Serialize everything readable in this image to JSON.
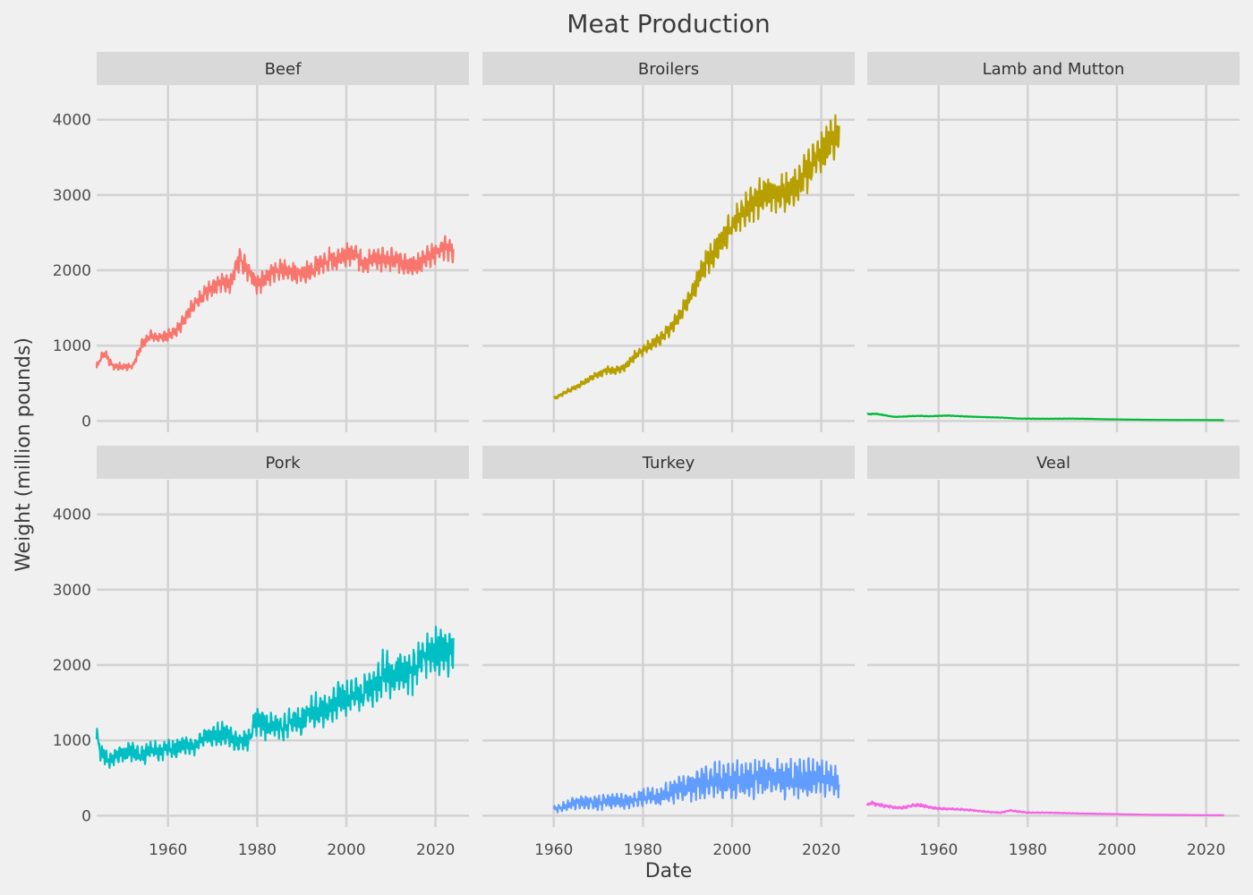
{
  "chart_data": {
    "type": "line",
    "title": "Meat Production",
    "xlabel": "Date",
    "ylabel": "Weight (million pounds)",
    "xlim": [
      1944,
      2027.5
    ],
    "ylim": [
      -150,
      4460
    ],
    "x_ticks": [
      1960,
      1980,
      2000,
      2020
    ],
    "y_ticks": [
      0,
      1000,
      2000,
      3000,
      4000
    ],
    "grid": true,
    "legend": "none",
    "panels": [
      {
        "name": "Beef",
        "color": "#F8766D",
        "start": 1944,
        "end": 2024,
        "seasonal_amp": 0.06,
        "points": [
          [
            1944,
            720
          ],
          [
            1945,
            840
          ],
          [
            1946,
            900
          ],
          [
            1947,
            770
          ],
          [
            1948,
            720
          ],
          [
            1950,
            730
          ],
          [
            1952,
            720
          ],
          [
            1954,
            1000
          ],
          [
            1956,
            1130
          ],
          [
            1958,
            1100
          ],
          [
            1960,
            1130
          ],
          [
            1962,
            1200
          ],
          [
            1964,
            1370
          ],
          [
            1966,
            1560
          ],
          [
            1968,
            1680
          ],
          [
            1970,
            1760
          ],
          [
            1972,
            1830
          ],
          [
            1974,
            1820
          ],
          [
            1976,
            2160
          ],
          [
            1978,
            2000
          ],
          [
            1980,
            1800
          ],
          [
            1982,
            1900
          ],
          [
            1984,
            1980
          ],
          [
            1986,
            2000
          ],
          [
            1988,
            1970
          ],
          [
            1990,
            1950
          ],
          [
            1992,
            1980
          ],
          [
            1994,
            2080
          ],
          [
            1996,
            2140
          ],
          [
            1998,
            2140
          ],
          [
            2000,
            2200
          ],
          [
            2002,
            2220
          ],
          [
            2004,
            2060
          ],
          [
            2006,
            2160
          ],
          [
            2008,
            2150
          ],
          [
            2010,
            2140
          ],
          [
            2012,
            2120
          ],
          [
            2014,
            2060
          ],
          [
            2016,
            2080
          ],
          [
            2018,
            2190
          ],
          [
            2020,
            2220
          ],
          [
            2022,
            2300
          ],
          [
            2024,
            2260
          ]
        ]
      },
      {
        "name": "Broilers",
        "color": "#B79F00",
        "start": 1960,
        "end": 2024,
        "seasonal_amp": 0.07,
        "points": [
          [
            1960,
            300
          ],
          [
            1962,
            360
          ],
          [
            1964,
            420
          ],
          [
            1966,
            480
          ],
          [
            1968,
            550
          ],
          [
            1970,
            620
          ],
          [
            1972,
            680
          ],
          [
            1974,
            660
          ],
          [
            1976,
            720
          ],
          [
            1978,
            850
          ],
          [
            1980,
            950
          ],
          [
            1982,
            1020
          ],
          [
            1984,
            1100
          ],
          [
            1986,
            1220
          ],
          [
            1988,
            1380
          ],
          [
            1990,
            1580
          ],
          [
            1992,
            1830
          ],
          [
            1994,
            2080
          ],
          [
            1996,
            2260
          ],
          [
            1998,
            2420
          ],
          [
            2000,
            2580
          ],
          [
            2002,
            2760
          ],
          [
            2004,
            2880
          ],
          [
            2006,
            2950
          ],
          [
            2008,
            3020
          ],
          [
            2010,
            2980
          ],
          [
            2012,
            3020
          ],
          [
            2014,
            3120
          ],
          [
            2016,
            3260
          ],
          [
            2018,
            3420
          ],
          [
            2020,
            3560
          ],
          [
            2022,
            3680
          ],
          [
            2024,
            3840
          ]
        ]
      },
      {
        "name": "Lamb and Mutton",
        "color": "#00BA38",
        "start": 1944,
        "end": 2024,
        "seasonal_amp": 0.06,
        "points": [
          [
            1944,
            90
          ],
          [
            1946,
            95
          ],
          [
            1948,
            75
          ],
          [
            1950,
            55
          ],
          [
            1952,
            58
          ],
          [
            1954,
            65
          ],
          [
            1956,
            68
          ],
          [
            1958,
            62
          ],
          [
            1960,
            68
          ],
          [
            1962,
            72
          ],
          [
            1964,
            66
          ],
          [
            1966,
            60
          ],
          [
            1970,
            52
          ],
          [
            1974,
            45
          ],
          [
            1978,
            32
          ],
          [
            1982,
            30
          ],
          [
            1986,
            30
          ],
          [
            1990,
            32
          ],
          [
            1994,
            28
          ],
          [
            1998,
            22
          ],
          [
            2002,
            19
          ],
          [
            2006,
            16
          ],
          [
            2010,
            14
          ],
          [
            2014,
            13
          ],
          [
            2018,
            13
          ],
          [
            2024,
            11
          ]
        ]
      },
      {
        "name": "Pork",
        "color": "#00BFC4",
        "start": 1944,
        "end": 2024,
        "seasonal_amp": 0.13,
        "points": [
          [
            1944,
            1050
          ],
          [
            1945,
            830
          ],
          [
            1946,
            780
          ],
          [
            1947,
            720
          ],
          [
            1948,
            780
          ],
          [
            1950,
            820
          ],
          [
            1952,
            860
          ],
          [
            1954,
            780
          ],
          [
            1956,
            880
          ],
          [
            1958,
            850
          ],
          [
            1960,
            880
          ],
          [
            1962,
            900
          ],
          [
            1964,
            950
          ],
          [
            1966,
            920
          ],
          [
            1968,
            1020
          ],
          [
            1970,
            1080
          ],
          [
            1972,
            1080
          ],
          [
            1974,
            1060
          ],
          [
            1976,
            970
          ],
          [
            1978,
            1010
          ],
          [
            1980,
            1300
          ],
          [
            1982,
            1180
          ],
          [
            1984,
            1200
          ],
          [
            1986,
            1160
          ],
          [
            1988,
            1260
          ],
          [
            1990,
            1240
          ],
          [
            1992,
            1380
          ],
          [
            1994,
            1420
          ],
          [
            1996,
            1380
          ],
          [
            1998,
            1560
          ],
          [
            2000,
            1550
          ],
          [
            2002,
            1600
          ],
          [
            2004,
            1640
          ],
          [
            2006,
            1680
          ],
          [
            2008,
            1900
          ],
          [
            2010,
            1850
          ],
          [
            2012,
            1920
          ],
          [
            2014,
            1860
          ],
          [
            2016,
            2000
          ],
          [
            2018,
            2140
          ],
          [
            2020,
            2220
          ],
          [
            2022,
            2200
          ],
          [
            2024,
            2240
          ]
        ]
      },
      {
        "name": "Turkey",
        "color": "#619CFF",
        "start": 1960,
        "end": 2024,
        "seasonal_amp": 0.45,
        "points": [
          [
            1960,
            80
          ],
          [
            1962,
            120
          ],
          [
            1964,
            150
          ],
          [
            1966,
            170
          ],
          [
            1968,
            175
          ],
          [
            1970,
            180
          ],
          [
            1972,
            185
          ],
          [
            1974,
            190
          ],
          [
            1976,
            190
          ],
          [
            1978,
            205
          ],
          [
            1980,
            240
          ],
          [
            1982,
            250
          ],
          [
            1984,
            260
          ],
          [
            1986,
            300
          ],
          [
            1988,
            360
          ],
          [
            1990,
            400
          ],
          [
            1992,
            420
          ],
          [
            1994,
            440
          ],
          [
            1996,
            460
          ],
          [
            1998,
            450
          ],
          [
            2000,
            460
          ],
          [
            2002,
            470
          ],
          [
            2004,
            460
          ],
          [
            2006,
            480
          ],
          [
            2008,
            510
          ],
          [
            2010,
            480
          ],
          [
            2012,
            500
          ],
          [
            2014,
            480
          ],
          [
            2016,
            500
          ],
          [
            2018,
            500
          ],
          [
            2020,
            500
          ],
          [
            2022,
            470
          ],
          [
            2024,
            460
          ]
        ]
      },
      {
        "name": "Veal",
        "color": "#F564E3",
        "start": 1944,
        "end": 2024,
        "seasonal_amp": 0.12,
        "points": [
          [
            1944,
            140
          ],
          [
            1945,
            170
          ],
          [
            1946,
            150
          ],
          [
            1948,
            130
          ],
          [
            1950,
            110
          ],
          [
            1952,
            105
          ],
          [
            1954,
            135
          ],
          [
            1956,
            140
          ],
          [
            1958,
            110
          ],
          [
            1960,
            95
          ],
          [
            1962,
            90
          ],
          [
            1964,
            85
          ],
          [
            1966,
            80
          ],
          [
            1968,
            70
          ],
          [
            1970,
            55
          ],
          [
            1972,
            45
          ],
          [
            1974,
            40
          ],
          [
            1976,
            70
          ],
          [
            1978,
            55
          ],
          [
            1980,
            40
          ],
          [
            1984,
            40
          ],
          [
            1988,
            35
          ],
          [
            1992,
            28
          ],
          [
            1996,
            25
          ],
          [
            2000,
            20
          ],
          [
            2004,
            15
          ],
          [
            2008,
            12
          ],
          [
            2012,
            10
          ],
          [
            2016,
            8
          ],
          [
            2020,
            7
          ],
          [
            2024,
            6
          ]
        ]
      }
    ]
  }
}
